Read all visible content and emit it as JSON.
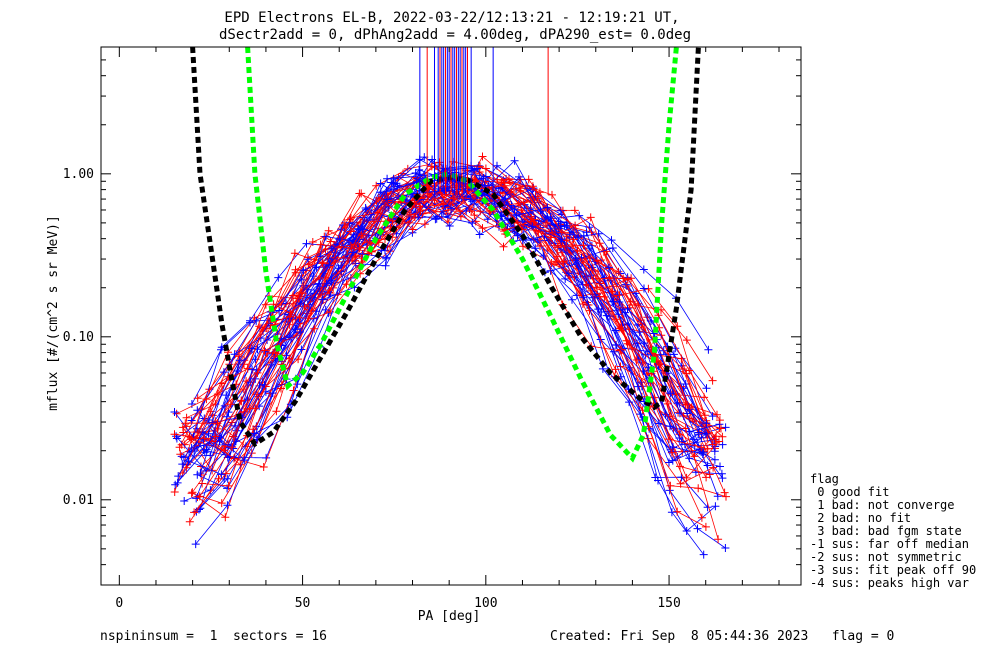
{
  "chart_data": {
    "type": "scatter",
    "title": "EPD Electrons EL-B, 2022-03-22/12:13:21 - 12:19:21 UT,",
    "subtitle": "dSectr2add = 0, dPhAng2add = 4.00deg, dPA290_est=   0.0deg",
    "xlabel": "PA [deg]",
    "ylabel": "mflux [#/(cm^2 s sr MeV)]",
    "xlim": [
      -5,
      186
    ],
    "ylim": [
      0.003,
      6.0
    ],
    "yscale": "log",
    "xticks": [
      0,
      50,
      100,
      150
    ],
    "xtick_labels": [
      "0",
      "50",
      "100",
      "150"
    ],
    "yticks": [
      0.01,
      0.1,
      1.0
    ],
    "ytick_labels": [
      "0.01",
      "0.10",
      "1.00"
    ],
    "grid": false,
    "colors": {
      "red": "#ff0000",
      "blue": "#0000ff",
      "green": "#00ff00",
      "black": "#000000"
    },
    "curves": [
      {
        "color": "black",
        "style": "dashed",
        "x": [
          20,
          22,
          25,
          28,
          31,
          33,
          37,
          42,
          48,
          55,
          62,
          70,
          78,
          85,
          90,
          95,
          102,
          110,
          118,
          126,
          134,
          142,
          146,
          148,
          152,
          156,
          158
        ],
        "y": [
          6.0,
          1.0,
          0.35,
          0.12,
          0.05,
          0.03,
          0.022,
          0.026,
          0.04,
          0.075,
          0.14,
          0.3,
          0.6,
          0.9,
          0.95,
          0.92,
          0.75,
          0.42,
          0.2,
          0.1,
          0.06,
          0.042,
          0.037,
          0.04,
          0.15,
          0.8,
          6.0
        ]
      },
      {
        "color": "green",
        "style": "dashed",
        "x": [
          35,
          37,
          40,
          43,
          46,
          50,
          55,
          62,
          70,
          78,
          85,
          90,
          95,
          102,
          110,
          118,
          126,
          134,
          140,
          143,
          146,
          148,
          150,
          152
        ],
        "y": [
          6.0,
          1.0,
          0.25,
          0.09,
          0.05,
          0.06,
          0.09,
          0.18,
          0.4,
          0.75,
          0.95,
          1.0,
          0.9,
          0.6,
          0.3,
          0.13,
          0.055,
          0.025,
          0.018,
          0.025,
          0.08,
          0.5,
          2.0,
          6.0
        ]
      }
    ],
    "vlines": {
      "x": [
        82,
        84,
        86,
        87,
        87.5,
        88,
        88.5,
        89,
        89.5,
        90,
        90.5,
        91,
        91.5,
        92,
        92.5,
        93,
        93.5,
        94,
        94.5,
        95,
        96,
        102,
        117
      ],
      "color": "mixed red/blue"
    },
    "legend": {
      "position": "bottom-right",
      "title": "flag",
      "items": [
        " 0 good fit",
        " 1 bad: not converge",
        " 2 bad: no fit",
        " 3 bad: bad fgm state",
        "-1 sus: far off median",
        "-2 sus: not symmetric",
        "-3 sus: fit peak off 90",
        "-4 sus: peaks high var"
      ]
    },
    "footer_left": "nspininsum =  1  sectors = 16",
    "footer_right": "Created: Fri Sep  8 05:44:36 2023   flag = 0"
  }
}
